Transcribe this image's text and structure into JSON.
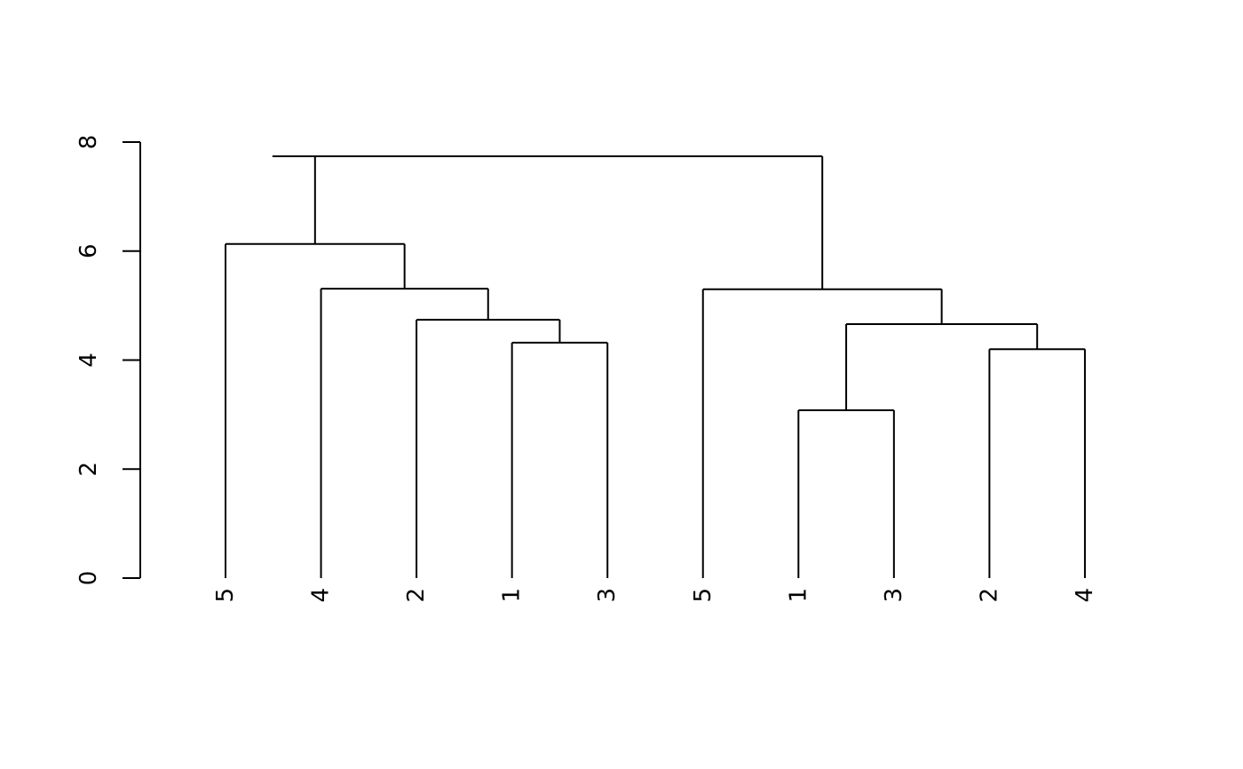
{
  "chart_data": {
    "type": "dendrogram",
    "title": "",
    "xlabel": "",
    "ylabel": "",
    "ylim": [
      0,
      8
    ],
    "yticks": [
      0,
      2,
      4,
      6,
      8
    ],
    "line_color": "#000000",
    "leaves": [
      "5",
      "4",
      "2",
      "1",
      "3",
      "5",
      "1",
      "3",
      "2",
      "4"
    ],
    "tree": {
      "height": 7.74,
      "children": [
        {
          "height": 6.13,
          "children": [
            {
              "leaf": 0
            },
            {
              "height": 5.31,
              "children": [
                {
                  "leaf": 1
                },
                {
                  "height": 4.74,
                  "children": [
                    {
                      "leaf": 2
                    },
                    {
                      "height": 4.32,
                      "children": [
                        {
                          "leaf": 3
                        },
                        {
                          "leaf": 4
                        }
                      ]
                    }
                  ]
                }
              ]
            }
          ]
        },
        {
          "height": 5.3,
          "children": [
            {
              "leaf": 5
            },
            {
              "height": 4.66,
              "children": [
                {
                  "height": 3.08,
                  "children": [
                    {
                      "leaf": 6
                    },
                    {
                      "leaf": 7
                    }
                  ]
                },
                {
                  "height": 4.2,
                  "children": [
                    {
                      "leaf": 8
                    },
                    {
                      "leaf": 9
                    }
                  ]
                }
              ]
            }
          ]
        }
      ]
    }
  }
}
